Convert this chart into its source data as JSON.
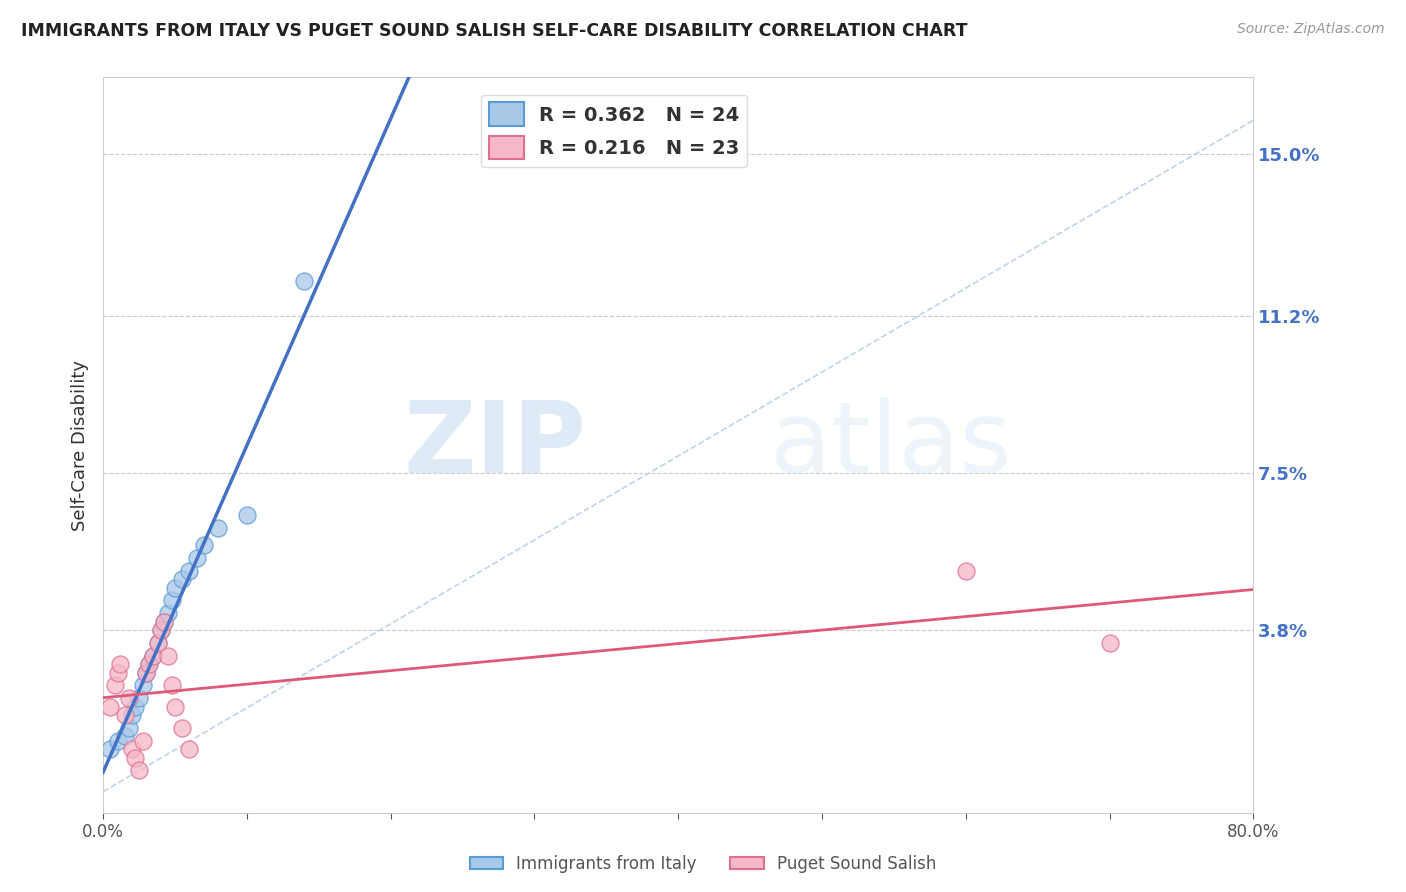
{
  "title": "IMMIGRANTS FROM ITALY VS PUGET SOUND SALISH SELF-CARE DISABILITY CORRELATION CHART",
  "source_text": "Source: ZipAtlas.com",
  "ylabel": "Self-Care Disability",
  "xlim": [
    0.0,
    0.8
  ],
  "ylim": [
    -0.005,
    0.168
  ],
  "xticks": [
    0.0,
    0.1,
    0.2,
    0.3,
    0.4,
    0.5,
    0.6,
    0.7,
    0.8
  ],
  "yticks_right": [
    0.038,
    0.075,
    0.112,
    0.15
  ],
  "yticklabels_right": [
    "3.8%",
    "7.5%",
    "11.2%",
    "15.0%"
  ],
  "r_blue": 0.362,
  "n_blue": 24,
  "r_pink": 0.216,
  "n_pink": 23,
  "blue_color": "#a8c8e8",
  "blue_edge_color": "#5b9bd5",
  "pink_color": "#f4b8c8",
  "pink_edge_color": "#e07090",
  "blue_line_color": "#4472c4",
  "pink_line_color": "#e05878",
  "trend_dash_color": "#b8d0e8",
  "legend_label_blue": "Immigrants from Italy",
  "legend_label_pink": "Puget Sound Salish",
  "watermark_zip": "ZIP",
  "watermark_atlas": "atlas",
  "blue_scatter_x": [
    0.005,
    0.01,
    0.015,
    0.018,
    0.02,
    0.022,
    0.025,
    0.028,
    0.03,
    0.032,
    0.035,
    0.038,
    0.04,
    0.042,
    0.045,
    0.048,
    0.05,
    0.055,
    0.06,
    0.065,
    0.07,
    0.08,
    0.1,
    0.14
  ],
  "blue_scatter_y": [
    0.01,
    0.012,
    0.013,
    0.015,
    0.018,
    0.02,
    0.022,
    0.025,
    0.028,
    0.03,
    0.032,
    0.035,
    0.038,
    0.04,
    0.042,
    0.045,
    0.048,
    0.05,
    0.052,
    0.055,
    0.058,
    0.062,
    0.065,
    0.12
  ],
  "pink_scatter_x": [
    0.005,
    0.008,
    0.01,
    0.012,
    0.015,
    0.018,
    0.02,
    0.022,
    0.025,
    0.028,
    0.03,
    0.032,
    0.035,
    0.038,
    0.04,
    0.042,
    0.045,
    0.048,
    0.05,
    0.055,
    0.06,
    0.6,
    0.7
  ],
  "pink_scatter_y": [
    0.02,
    0.025,
    0.028,
    0.03,
    0.018,
    0.022,
    0.01,
    0.008,
    0.005,
    0.012,
    0.028,
    0.03,
    0.032,
    0.035,
    0.038,
    0.04,
    0.032,
    0.025,
    0.02,
    0.015,
    0.01,
    0.052,
    0.035
  ]
}
